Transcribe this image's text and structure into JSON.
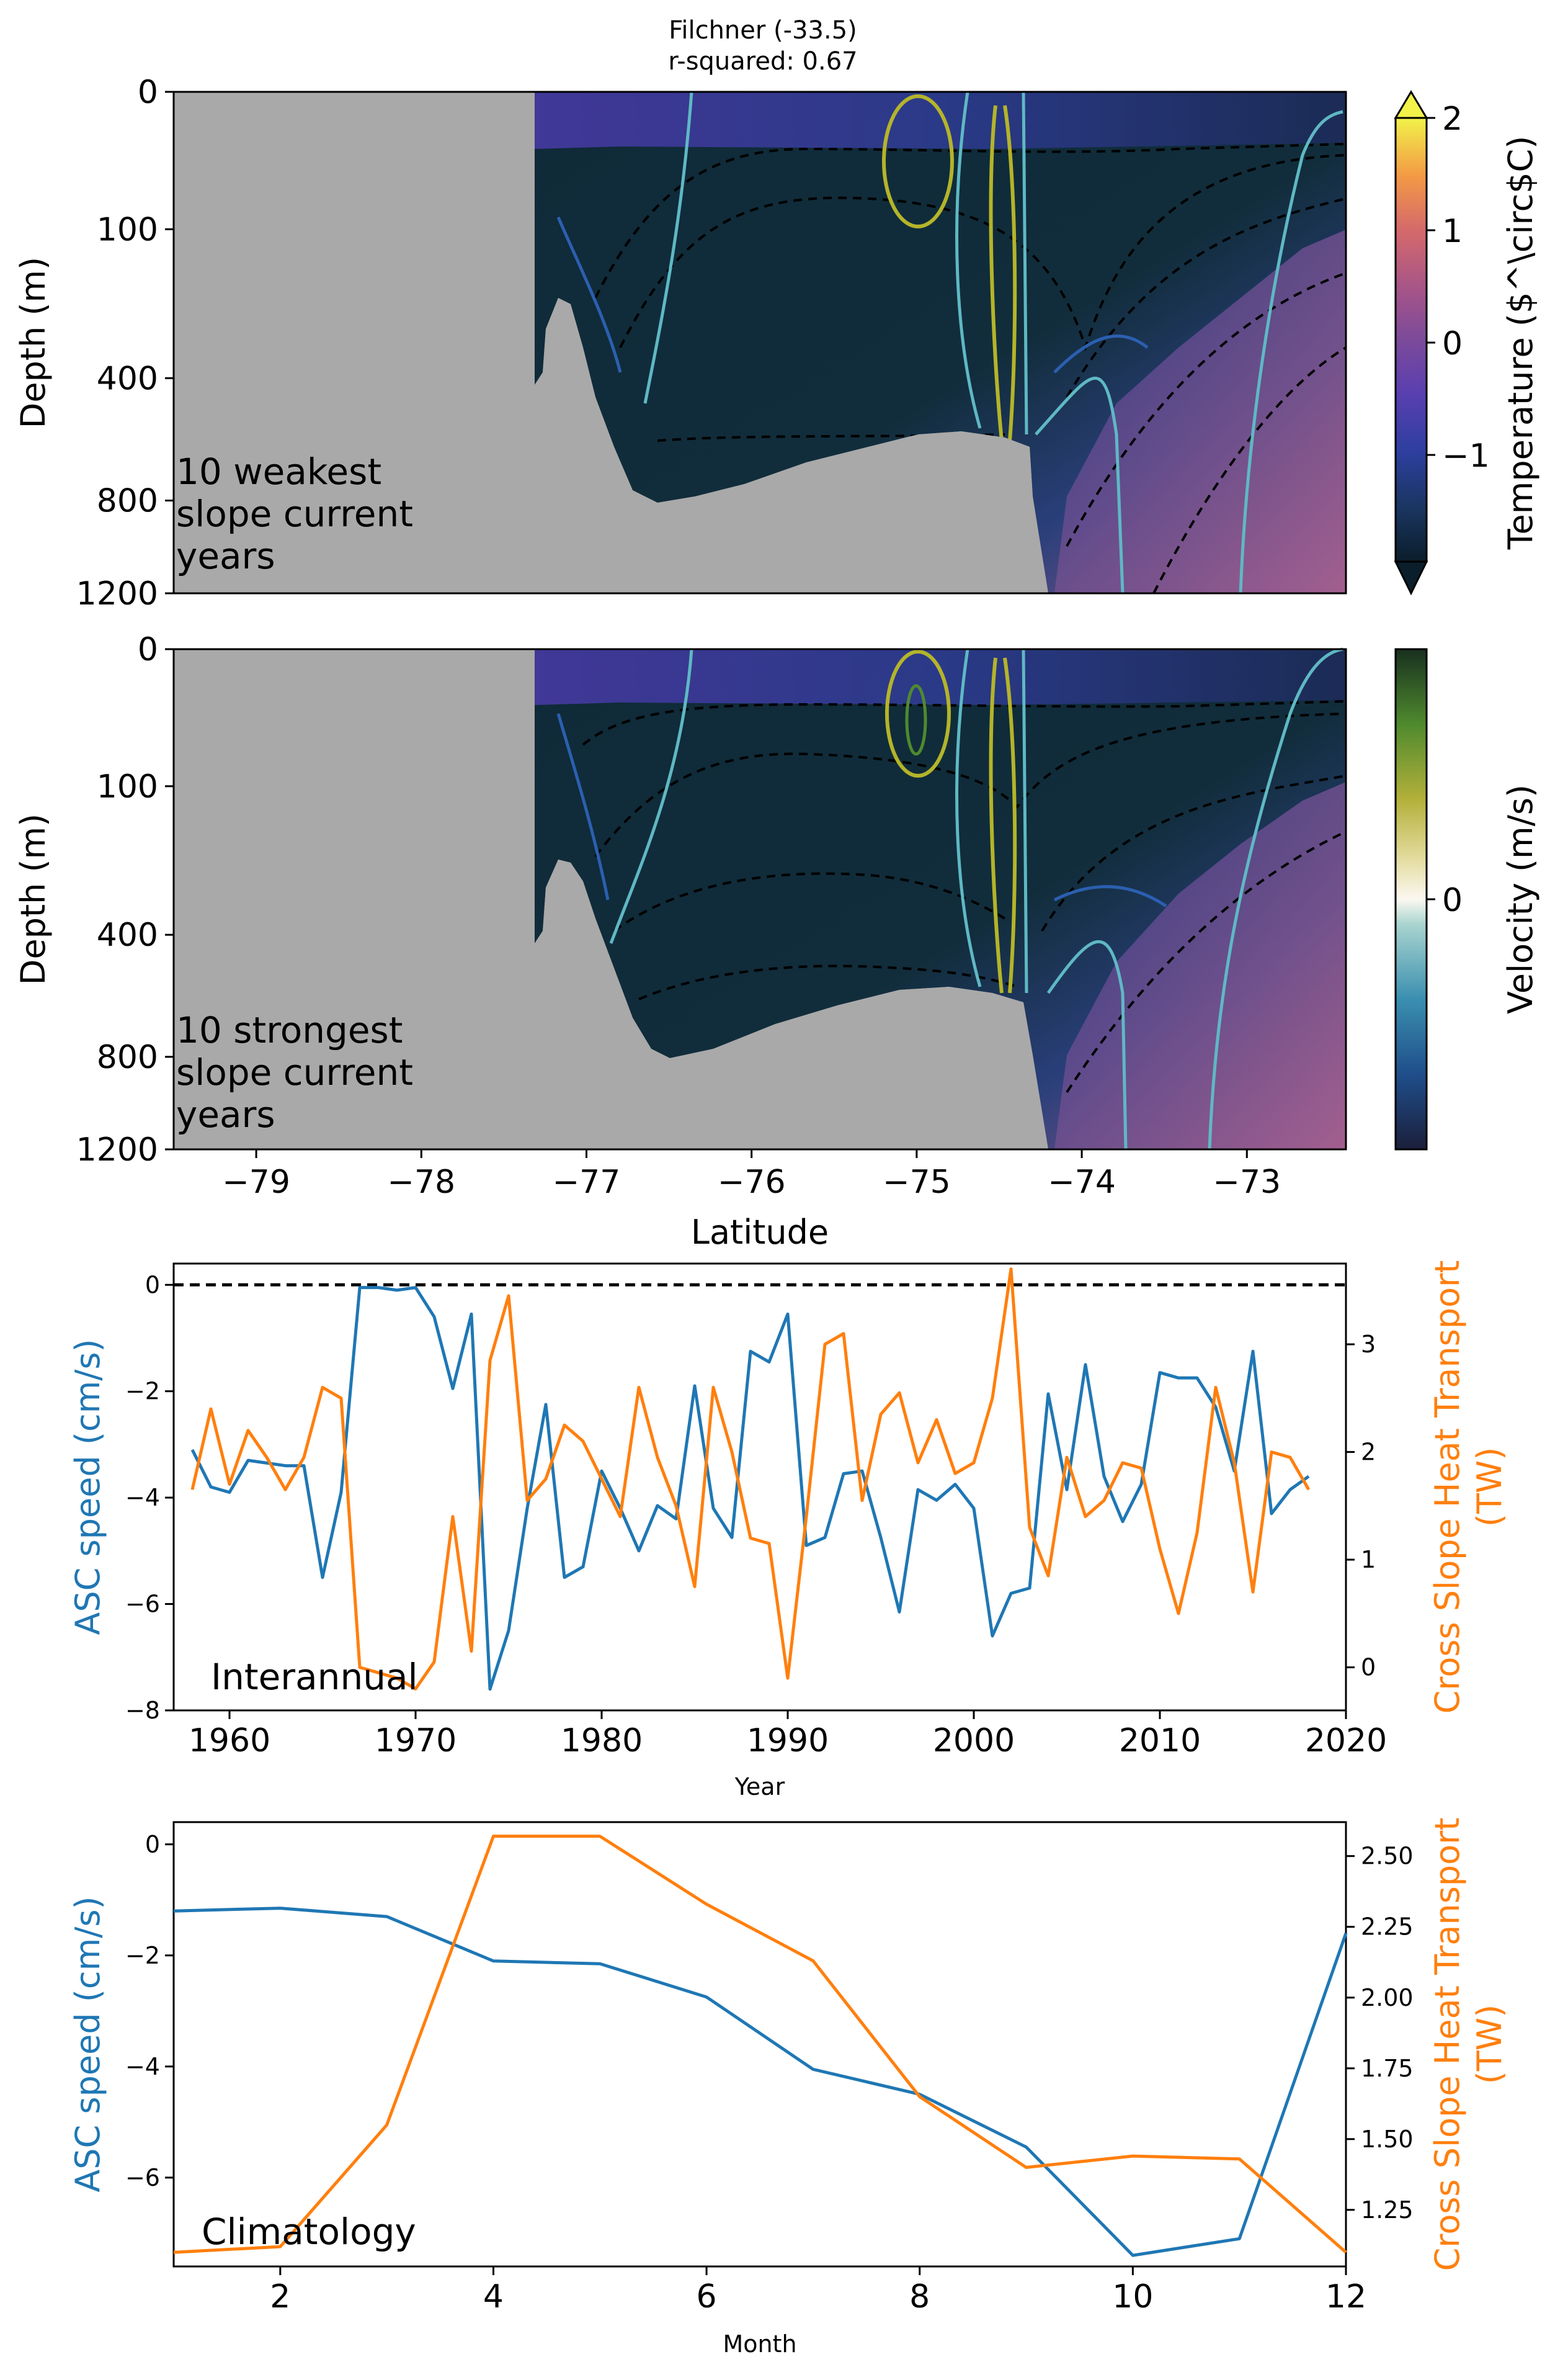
{
  "figure": {
    "title_line1": "Filchner (-33.5)",
    "title_line2": "r-squared: 0.67"
  },
  "colors": {
    "blue": "#1f77b4",
    "orange": "#ff7f0e",
    "land": "#a9a9a9",
    "shelf_water": "#0e2a36"
  },
  "chart_data": [
    {
      "type": "heatmap",
      "panel": "weakest",
      "label_lines": [
        "10 weakest",
        "slope current",
        "years"
      ],
      "ylabel": "Depth (m)",
      "ytick_labels": [
        "0",
        "100",
        "400",
        "800",
        "1200"
      ],
      "xlim": [
        -79.5,
        -72.4
      ],
      "colorbar": {
        "label": "Temperature ($^\\circ$C)",
        "tick_values": [
          2,
          1,
          0,
          -1
        ],
        "tick_labels": [
          "2",
          "1",
          "0",
          "−1"
        ]
      }
    },
    {
      "type": "heatmap",
      "panel": "strongest",
      "label_lines": [
        "10 strongest",
        "slope current",
        "years"
      ],
      "ylabel": "Depth (m)",
      "xlabel": "Latitude",
      "ytick_labels": [
        "0",
        "100",
        "400",
        "800",
        "1200"
      ],
      "xticks": [
        -79,
        -78,
        -77,
        -76,
        -75,
        -74,
        -73
      ],
      "xtick_labels": [
        "−79",
        "−78",
        "−77",
        "−76",
        "−75",
        "−74",
        "−73"
      ],
      "xlim": [
        -79.5,
        -72.4
      ],
      "colorbar": {
        "label": "Velocity (m/s)",
        "tick_labels": [
          "0"
        ]
      }
    },
    {
      "type": "line",
      "panel": "interannual",
      "label": "Interannual",
      "xlabel": "Year",
      "ylabel_left": "ASC speed (cm/s)",
      "ylabel_right_lines": [
        "Cross Slope Heat Transport",
        "(TW)"
      ],
      "xlim": [
        1957,
        2020
      ],
      "ylim_left": [
        -8,
        0.4
      ],
      "ylim_right": [
        -0.4,
        3.75
      ],
      "xticks": [
        1960,
        1970,
        1980,
        1990,
        2000,
        2010,
        2020
      ],
      "yticks_left": [
        0,
        -2,
        -4,
        -6,
        -8
      ],
      "ytick_labels_left": [
        "0",
        "−2",
        "−4",
        "−6",
        "−8"
      ],
      "yticks_right": [
        0,
        1,
        2,
        3
      ],
      "reference_line_y": 0,
      "x": [
        1958,
        1959,
        1960,
        1961,
        1962,
        1963,
        1964,
        1965,
        1966,
        1967,
        1968,
        1969,
        1970,
        1971,
        1972,
        1973,
        1974,
        1975,
        1976,
        1977,
        1978,
        1979,
        1980,
        1981,
        1982,
        1983,
        1984,
        1985,
        1986,
        1987,
        1988,
        1989,
        1990,
        1991,
        1992,
        1993,
        1994,
        1995,
        1996,
        1997,
        1998,
        1999,
        2000,
        2001,
        2002,
        2003,
        2004,
        2005,
        2006,
        2007,
        2008,
        2009,
        2010,
        2011,
        2012,
        2013,
        2014,
        2015,
        2016,
        2017,
        2018
      ],
      "series": [
        {
          "axis": "left",
          "color": "#1f77b4",
          "values": [
            -3.1,
            -3.8,
            -3.9,
            -3.3,
            -3.35,
            -3.4,
            -3.4,
            -5.5,
            -3.9,
            -0.05,
            -0.05,
            -0.1,
            -0.05,
            -0.6,
            -1.95,
            -0.55,
            -7.6,
            -6.5,
            -4.2,
            -2.25,
            -5.5,
            -5.3,
            -3.5,
            -4.2,
            -5.0,
            -4.15,
            -4.4,
            -1.9,
            -4.2,
            -4.75,
            -1.25,
            -1.45,
            -0.55,
            -4.9,
            -4.75,
            -3.55,
            -3.5,
            -4.75,
            -6.15,
            -3.85,
            -4.05,
            -3.75,
            -4.2,
            -6.6,
            -5.8,
            -5.7,
            -2.05,
            -3.85,
            -1.5,
            -3.6,
            -4.45,
            -3.75,
            -1.65,
            -1.75,
            -1.75,
            -2.3,
            -3.5,
            -1.25,
            -4.3,
            -3.85,
            -3.6
          ]
        },
        {
          "axis": "right",
          "color": "#ff7f0e",
          "values": [
            1.65,
            2.4,
            1.7,
            2.2,
            1.95,
            1.65,
            1.95,
            2.6,
            2.5,
            0.0,
            -0.05,
            -0.1,
            -0.2,
            0.05,
            1.4,
            0.15,
            2.85,
            3.45,
            1.55,
            1.75,
            2.25,
            2.1,
            1.75,
            1.4,
            2.6,
            1.95,
            1.5,
            0.75,
            2.6,
            2.0,
            1.2,
            1.15,
            -0.1,
            1.4,
            3.0,
            3.1,
            1.55,
            2.35,
            2.55,
            1.9,
            2.3,
            1.8,
            1.9,
            2.5,
            3.7,
            1.3,
            0.85,
            1.95,
            1.4,
            1.55,
            1.9,
            1.85,
            1.1,
            0.5,
            1.25,
            2.6,
            1.9,
            0.7,
            2.0,
            1.95,
            1.65
          ]
        }
      ]
    },
    {
      "type": "line",
      "panel": "climatology",
      "label": "Climatology",
      "xlabel": "Month",
      "ylabel_left": "ASC speed (cm/s)",
      "ylabel_right_lines": [
        "Cross Slope Heat Transport",
        "(TW)"
      ],
      "xlim": [
        1,
        12
      ],
      "ylim_left": [
        -7.6,
        0.4
      ],
      "ylim_right": [
        1.05,
        2.62
      ],
      "xticks": [
        2,
        4,
        6,
        8,
        10,
        12
      ],
      "yticks_left": [
        0,
        -2,
        -4,
        -6
      ],
      "ytick_labels_left": [
        "0",
        "−2",
        "−4",
        "−6"
      ],
      "yticks_right": [
        1.25,
        1.5,
        1.75,
        2.0,
        2.25,
        2.5
      ],
      "ytick_labels_right": [
        "1.25",
        "1.50",
        "1.75",
        "2.00",
        "2.25",
        "2.50"
      ],
      "x": [
        1,
        2,
        3,
        4,
        5,
        6,
        7,
        8,
        9,
        10,
        11,
        12
      ],
      "series": [
        {
          "axis": "left",
          "color": "#1f77b4",
          "values": [
            -1.2,
            -1.15,
            -1.3,
            -2.1,
            -2.15,
            -2.75,
            -4.05,
            -4.5,
            -5.45,
            -7.4,
            -7.1,
            -1.6
          ]
        },
        {
          "axis": "right",
          "color": "#ff7f0e",
          "values": [
            1.1,
            1.12,
            1.55,
            2.57,
            2.57,
            2.33,
            2.13,
            1.65,
            1.4,
            1.44,
            1.43,
            1.1
          ]
        }
      ]
    }
  ]
}
